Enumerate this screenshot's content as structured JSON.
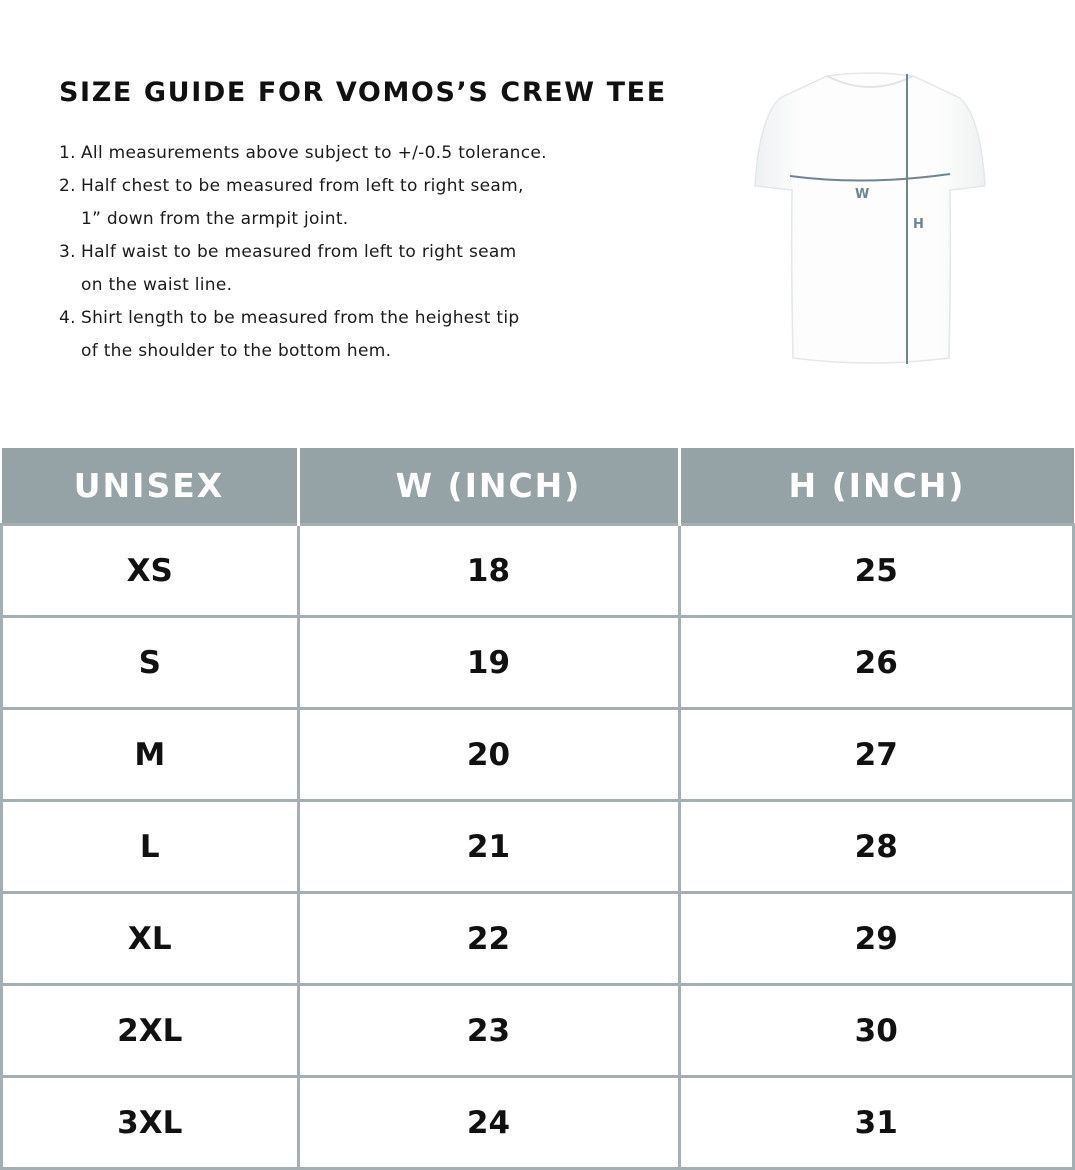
{
  "title": "SIZE GUIDE FOR VOMOS’S CREW TEE",
  "notes": [
    {
      "num": "1.",
      "lines": [
        "All measurements above subject to +/-0.5 tolerance."
      ]
    },
    {
      "num": "2.",
      "lines": [
        "Half chest to be measured from left to right seam,",
        "1” down from the armpit joint."
      ]
    },
    {
      "num": "3.",
      "lines": [
        "Half waist to be measured from left to right seam",
        "on the waist line."
      ]
    },
    {
      "num": "4.",
      "lines": [
        "Shirt length to be measured from the heighest tip",
        "of the shoulder to the bottom hem."
      ]
    }
  ],
  "diagram": {
    "w_label": "W",
    "h_label": "H",
    "line_color": "#6f8590"
  },
  "colors": {
    "header_bg": "#95a2a6",
    "border": "#a3afb2"
  },
  "table": {
    "headers": [
      "UNISEX",
      "W (INCH)",
      "H (INCH)"
    ],
    "rows": [
      [
        "XS",
        "18",
        "25"
      ],
      [
        "S",
        "19",
        "26"
      ],
      [
        "M",
        "20",
        "27"
      ],
      [
        "L",
        "21",
        "28"
      ],
      [
        "XL",
        "22",
        "29"
      ],
      [
        "2XL",
        "23",
        "30"
      ],
      [
        "3XL",
        "24",
        "31"
      ]
    ]
  }
}
